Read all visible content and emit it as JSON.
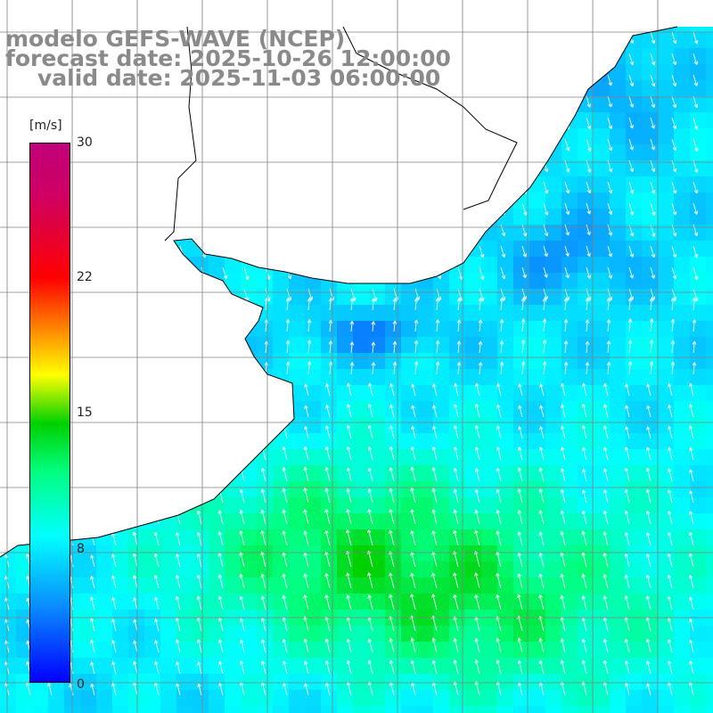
{
  "title": {
    "line1": "modelo GEFS-WAVE (NCEP)",
    "line2": "forecast date: 2025-10-26 12:00:00",
    "line3": "valid date: 2025-11-03 06:00:00"
  },
  "colorbar": {
    "unit": "[m/s]",
    "ticks": [
      "30",
      "22",
      "15",
      "8",
      "0"
    ],
    "tick_values": [
      30,
      22,
      15,
      8,
      0
    ],
    "range": [
      0,
      30
    ],
    "colors": [
      "#0000ff",
      "#0a8cff",
      "#00ffff",
      "#00ff80",
      "#00d000",
      "#ffff00",
      "#ff8000",
      "#ff0000",
      "#c0007a"
    ]
  },
  "map": {
    "field": "wind speed and direction",
    "land_color": "#ffffff",
    "grid_color": "#808080",
    "coastline_color": "#000000"
  }
}
